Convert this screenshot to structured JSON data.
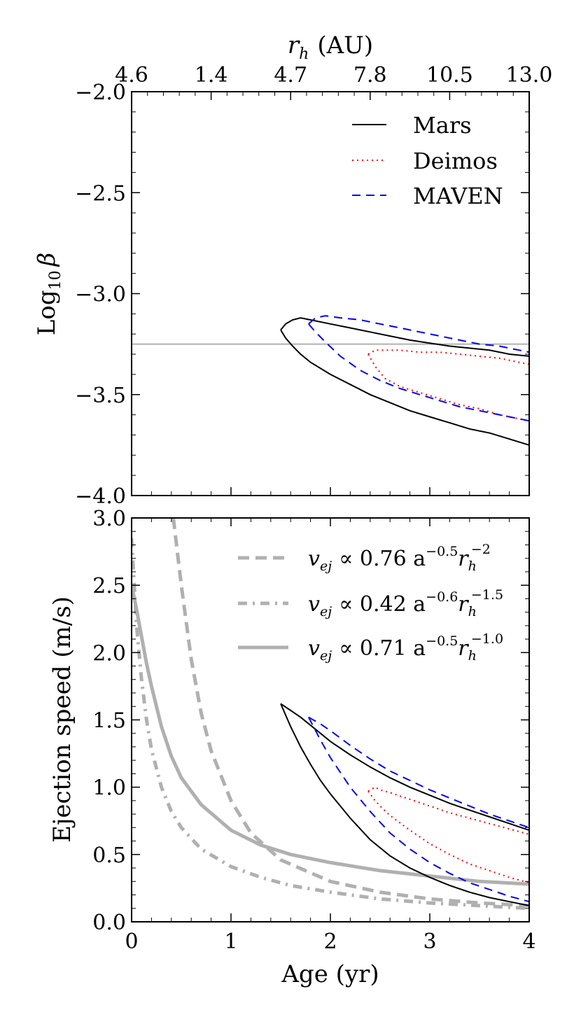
{
  "chart_data": [
    {
      "type": "line",
      "panel": "top",
      "ylabel": "Log",
      "ylabel_sub": "10",
      "ylabel_symbol": "β",
      "ylim": [
        -4.0,
        -2.0
      ],
      "xlim": [
        0,
        4
      ],
      "yticks": [
        "−4.0",
        "−3.5",
        "−3.0",
        "−2.5",
        "−2.0"
      ],
      "top_axis": {
        "label": "r",
        "label_sub": "h",
        "label_unit": "(AU)",
        "ticks": [
          "4.6",
          "1.4",
          "4.7",
          "7.8",
          "10.5",
          "13.0"
        ]
      },
      "reference_line": {
        "y": -3.25,
        "color": "#b0b0b0"
      },
      "legend": {
        "placement": "top-right",
        "entries": [
          "Mars",
          "Deimos",
          "MAVEN"
        ]
      },
      "series": [
        {
          "name": "Mars",
          "style": "solid",
          "color": "#000000",
          "upper": {
            "x": [
              1.5,
              1.55,
              1.62,
              1.7,
              1.8,
              2.0,
              2.2,
              2.4,
              2.6,
              2.8,
              3.0,
              3.2,
              3.4,
              3.6,
              3.8,
              4.0
            ],
            "y": [
              -3.18,
              -3.15,
              -3.13,
              -3.12,
              -3.13,
              -3.15,
              -3.17,
              -3.19,
              -3.21,
              -3.23,
              -3.245,
              -3.26,
              -3.27,
              -3.28,
              -3.3,
              -3.31
            ]
          },
          "lower": {
            "x": [
              1.5,
              1.55,
              1.62,
              1.7,
              1.8,
              2.0,
              2.2,
              2.4,
              2.6,
              2.8,
              3.0,
              3.2,
              3.4,
              3.6,
              3.8,
              4.0
            ],
            "y": [
              -3.18,
              -3.22,
              -3.26,
              -3.3,
              -3.34,
              -3.4,
              -3.45,
              -3.5,
              -3.54,
              -3.58,
              -3.61,
              -3.64,
              -3.67,
              -3.69,
              -3.72,
              -3.75
            ]
          }
        },
        {
          "name": "Deimos",
          "style": "dotted",
          "color": "#ff0000",
          "upper": {
            "x": [
              2.38,
              2.45,
              2.55,
              2.7,
              2.9,
              3.1,
              3.3,
              3.5,
              3.7,
              3.9,
              4.0
            ],
            "y": [
              -3.3,
              -3.28,
              -3.28,
              -3.28,
              -3.29,
              -3.29,
              -3.3,
              -3.31,
              -3.32,
              -3.34,
              -3.35
            ]
          },
          "lower": {
            "x": [
              2.38,
              2.45,
              2.55,
              2.7,
              2.9,
              3.1,
              3.3,
              3.5,
              3.7,
              3.9,
              4.0
            ],
            "y": [
              -3.3,
              -3.36,
              -3.42,
              -3.46,
              -3.49,
              -3.52,
              -3.55,
              -3.57,
              -3.6,
              -3.62,
              -3.63
            ]
          }
        },
        {
          "name": "MAVEN",
          "style": "dashed",
          "color": "#0000ff",
          "upper": {
            "x": [
              1.78,
              1.85,
              1.95,
              2.1,
              2.3,
              2.5,
              2.7,
              2.9,
              3.1,
              3.3,
              3.5,
              3.7,
              3.9,
              4.0
            ],
            "y": [
              -3.15,
              -3.12,
              -3.11,
              -3.12,
              -3.13,
              -3.15,
              -3.17,
              -3.19,
              -3.21,
              -3.23,
              -3.25,
              -3.26,
              -3.28,
              -3.29
            ]
          },
          "lower": {
            "x": [
              1.78,
              1.85,
              1.95,
              2.1,
              2.3,
              2.5,
              2.7,
              2.9,
              3.1,
              3.3,
              3.5,
              3.7,
              3.9,
              4.0
            ],
            "y": [
              -3.15,
              -3.19,
              -3.24,
              -3.31,
              -3.38,
              -3.43,
              -3.47,
              -3.5,
              -3.53,
              -3.56,
              -3.58,
              -3.6,
              -3.62,
              -3.63
            ]
          }
        }
      ]
    },
    {
      "type": "line",
      "panel": "bottom",
      "xlabel": "Age (yr)",
      "ylabel": "Ejection speed (m/s)",
      "ylim": [
        0.0,
        3.0
      ],
      "xlim": [
        0,
        4
      ],
      "xticks": [
        "0",
        "1",
        "2",
        "3",
        "4"
      ],
      "yticks": [
        "0.0",
        "0.5",
        "1.0",
        "1.5",
        "2.0",
        "2.5",
        "3.0"
      ],
      "legend": {
        "placement": "top-right",
        "entries": [
          {
            "style": "dashed",
            "text_a": "v",
            "text_a_sub": "ej",
            "text_b": "∝ 0.76 a",
            "text_b_sup": "−0.5",
            "text_c": "r",
            "text_c_sub": "h",
            "text_c_sup": "−2"
          },
          {
            "style": "dashdot",
            "text_a": "v",
            "text_a_sub": "ej",
            "text_b": "∝ 0.42 a",
            "text_b_sup": "−0.6",
            "text_c": "r",
            "text_c_sub": "h",
            "text_c_sup": "−1.5"
          },
          {
            "style": "solid",
            "text_a": "v",
            "text_a_sub": "ej",
            "text_b": "∝ 0.71 a",
            "text_b_sup": "−0.5",
            "text_c": "r",
            "text_c_sub": "h",
            "text_c_sup": "−1.0"
          }
        ]
      },
      "model_curves": [
        {
          "name": "v_ej ∝ 0.76 a^-0.5 r_h^-2",
          "style": "dashed",
          "color": "#b0b0b0",
          "x": [
            0.42,
            0.5,
            0.6,
            0.7,
            0.8,
            1.0,
            1.2,
            1.5,
            2.0,
            2.5,
            3.0,
            3.5,
            4.0
          ],
          "y": [
            3.0,
            2.5,
            1.95,
            1.55,
            1.27,
            0.9,
            0.66,
            0.46,
            0.3,
            0.22,
            0.17,
            0.14,
            0.12
          ]
        },
        {
          "name": "v_ej ∝ 0.42 a^-0.6 r_h^-1.5",
          "style": "dashdot",
          "color": "#b0b0b0",
          "x": [
            0.0,
            0.05,
            0.1,
            0.15,
            0.2,
            0.3,
            0.4,
            0.5,
            0.7,
            1.0,
            1.3,
            1.6,
            2.0,
            2.5,
            3.0,
            3.5,
            4.0
          ],
          "y": [
            2.85,
            2.2,
            1.8,
            1.5,
            1.28,
            1.0,
            0.82,
            0.7,
            0.54,
            0.41,
            0.33,
            0.27,
            0.22,
            0.17,
            0.14,
            0.12,
            0.1
          ]
        },
        {
          "name": "v_ej ∝ 0.71 a^-0.5 r_h^-1.0",
          "style": "solid",
          "color": "#b0b0b0",
          "x": [
            0.0,
            0.05,
            0.1,
            0.15,
            0.2,
            0.3,
            0.4,
            0.5,
            0.7,
            1.0,
            1.3,
            1.6,
            2.0,
            2.5,
            3.0,
            3.5,
            4.0
          ],
          "y": [
            2.5,
            2.32,
            2.12,
            1.92,
            1.75,
            1.45,
            1.23,
            1.07,
            0.87,
            0.68,
            0.57,
            0.5,
            0.44,
            0.38,
            0.34,
            0.3,
            0.28
          ]
        }
      ],
      "series": [
        {
          "name": "Mars",
          "style": "solid",
          "color": "#000000",
          "upper": {
            "x": [
              1.5,
              1.6,
              1.7,
              1.8,
              1.9,
              2.0,
              2.2,
              2.4,
              2.6,
              2.8,
              3.0,
              3.2,
              3.4,
              3.6,
              3.8,
              4.0
            ],
            "y": [
              1.62,
              1.57,
              1.52,
              1.46,
              1.4,
              1.34,
              1.24,
              1.15,
              1.07,
              1.0,
              0.94,
              0.88,
              0.83,
              0.78,
              0.73,
              0.68
            ]
          },
          "lower": {
            "x": [
              1.5,
              1.6,
              1.7,
              1.8,
              1.9,
              2.0,
              2.2,
              2.4,
              2.6,
              2.8,
              3.0,
              3.2,
              3.4,
              3.6,
              3.8,
              4.0
            ],
            "y": [
              1.62,
              1.45,
              1.3,
              1.17,
              1.05,
              0.95,
              0.77,
              0.61,
              0.49,
              0.4,
              0.33,
              0.27,
              0.22,
              0.18,
              0.15,
              0.12
            ]
          }
        },
        {
          "name": "Deimos",
          "style": "dotted",
          "color": "#ff0000",
          "upper": {
            "x": [
              2.38,
              2.45,
              2.5,
              2.6,
              2.8,
              3.0,
              3.2,
              3.4,
              3.6,
              3.8,
              4.0
            ],
            "y": [
              0.97,
              1.0,
              0.98,
              0.96,
              0.91,
              0.86,
              0.81,
              0.77,
              0.73,
              0.69,
              0.65
            ]
          },
          "lower": {
            "x": [
              2.38,
              2.45,
              2.5,
              2.6,
              2.8,
              3.0,
              3.2,
              3.4,
              3.6,
              3.8,
              4.0
            ],
            "y": [
              0.97,
              0.9,
              0.86,
              0.79,
              0.68,
              0.58,
              0.5,
              0.43,
              0.38,
              0.33,
              0.29
            ]
          }
        },
        {
          "name": "MAVEN",
          "style": "dashed",
          "color": "#0000ff",
          "upper": {
            "x": [
              1.78,
              1.9,
              2.0,
              2.2,
              2.4,
              2.6,
              2.8,
              3.0,
              3.2,
              3.4,
              3.6,
              3.8,
              4.0
            ],
            "y": [
              1.52,
              1.47,
              1.42,
              1.31,
              1.21,
              1.12,
              1.05,
              0.98,
              0.92,
              0.86,
              0.8,
              0.75,
              0.7
            ]
          },
          "lower": {
            "x": [
              1.78,
              1.9,
              2.0,
              2.2,
              2.4,
              2.6,
              2.8,
              3.0,
              3.2,
              3.4,
              3.6,
              3.8,
              4.0
            ],
            "y": [
              1.52,
              1.35,
              1.22,
              1.0,
              0.82,
              0.66,
              0.54,
              0.44,
              0.36,
              0.29,
              0.24,
              0.19,
              0.15
            ]
          }
        }
      ]
    }
  ]
}
